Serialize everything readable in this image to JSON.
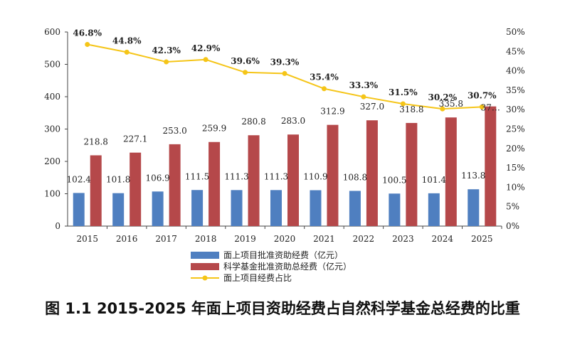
{
  "chart_data": {
    "type": "bar",
    "categories": [
      "2015",
      "2016",
      "2017",
      "2018",
      "2019",
      "2020",
      "2021",
      "2022",
      "2023",
      "2024",
      "2025"
    ],
    "series": [
      {
        "name": "面上项目批准资助经费（亿元）",
        "kind": "bar",
        "axis": "left",
        "color": "#4f7fc0",
        "values": [
          102.4,
          101.8,
          106.9,
          111.5,
          111.3,
          111.3,
          110.9,
          108.8,
          100.5,
          101.4,
          113.8
        ],
        "labels": [
          "102.4",
          "101.8",
          "106.9",
          "111.5",
          "111.3",
          "111.3",
          "110.9",
          "108.8",
          "100.5",
          "101.4",
          "113.8"
        ]
      },
      {
        "name": "科学基金批准资助总经费（亿元）",
        "kind": "bar",
        "axis": "left",
        "color": "#b5484a",
        "values": [
          218.8,
          227.1,
          253.0,
          259.9,
          280.8,
          283.0,
          312.9,
          327.0,
          318.8,
          335.8,
          370.0
        ],
        "labels": [
          "218.8",
          "227.1",
          "253.0",
          "259.9",
          "280.8",
          "283.0",
          "312.9",
          "327.0",
          "318.8",
          "335.8",
          "37…"
        ]
      },
      {
        "name": "面上项目经费占比",
        "kind": "line",
        "axis": "right",
        "color": "#f5c518",
        "values": [
          46.8,
          44.8,
          42.3,
          42.9,
          39.6,
          39.3,
          35.4,
          33.3,
          31.5,
          30.2,
          30.7
        ],
        "labels": [
          "46.8%",
          "44.8%",
          "42.3%",
          "42.9%",
          "39.6%",
          "39.3%",
          "35.4%",
          "33.3%",
          "31.5%",
          "30.2%",
          "30.7%"
        ]
      }
    ],
    "y_left": {
      "min": 0,
      "max": 600,
      "ticks": [
        "0",
        "100",
        "200",
        "300",
        "400",
        "500",
        "600"
      ]
    },
    "y_right": {
      "min": 0,
      "max": 50,
      "ticks": [
        "0%",
        "5%",
        "10%",
        "15%",
        "20%",
        "25%",
        "30%",
        "35%",
        "40%",
        "45%",
        "50%"
      ]
    },
    "legend_position": "bottom",
    "grid": false
  },
  "caption": "图 1.1 2015-2025 年面上项目资助经费占自然科学基金总经费的比重"
}
